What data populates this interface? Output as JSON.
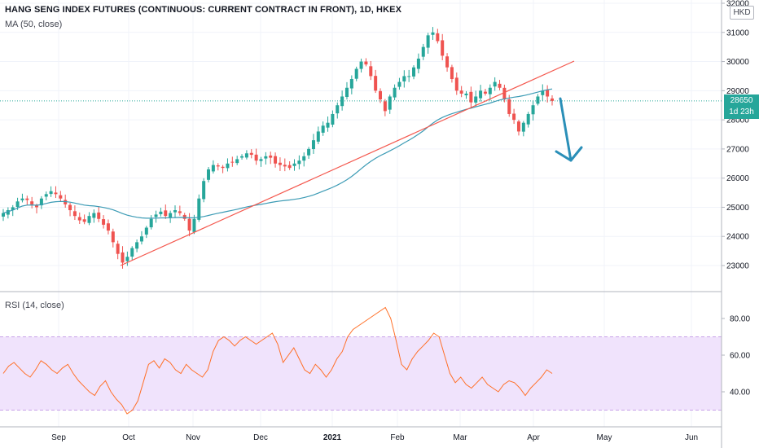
{
  "header": {
    "title": "HANG SENG INDEX FUTURES (CONTINUOUS: CURRENT CONTRACT IN FRONT), 1D, HKEX",
    "ma_label": "MA (50, close)",
    "rsi_label": "RSI (14, close)"
  },
  "price_axis": {
    "unit": "HKD",
    "ticks": [
      "32000",
      "31000",
      "30000",
      "29000",
      "28000",
      "27000",
      "26000",
      "25000",
      "24000",
      "23000"
    ],
    "last_price": "28650",
    "countdown": "1d 23h"
  },
  "rsi_axis": {
    "ticks": [
      "80.00",
      "60.00",
      "40.00"
    ]
  },
  "time_axis": {
    "ticks": [
      "Sep",
      "Oct",
      "Nov",
      "Dec",
      "2021",
      "Feb",
      "Mar",
      "Apr",
      "May",
      "Jun"
    ]
  },
  "colors": {
    "up": "#26a69a",
    "down": "#ef5350",
    "ma": "#3c9bb5",
    "trendline": "#f4584e",
    "rsi": "#ff7028",
    "rsi_band": "#f0e3fc",
    "arrow": "#2a8fb8",
    "last_price_line": "#26a69a"
  },
  "chart_data": [
    {
      "type": "candlestick",
      "title": "HANG SENG INDEX FUTURES (CONTINUOUS: CURRENT CONTRACT IN FRONT), 1D, HKEX",
      "ylim": [
        22600,
        32000
      ],
      "x_ticks": [
        "Sep",
        "Oct",
        "Nov",
        "Dec",
        "2021",
        "Feb",
        "Mar",
        "Apr",
        "May",
        "Jun"
      ],
      "approx_close_series": [
        24800,
        24900,
        25000,
        25200,
        25300,
        25250,
        25100,
        25000,
        25300,
        25450,
        25550,
        25450,
        25300,
        25100,
        24900,
        24700,
        24550,
        24500,
        24700,
        24800,
        24600,
        24400,
        24200,
        23800,
        23400,
        23100,
        23300,
        23600,
        23800,
        24000,
        24300,
        24600,
        24750,
        24850,
        24700,
        24800,
        24900,
        24800,
        24600,
        24200,
        24600,
        25300,
        25900,
        26300,
        26450,
        26400,
        26350,
        26500,
        26550,
        26650,
        26750,
        26850,
        26800,
        26600,
        26650,
        26750,
        26700,
        26500,
        26450,
        26400,
        26350,
        26500,
        26600,
        26750,
        27000,
        27300,
        27600,
        27800,
        27900,
        28200,
        28500,
        28800,
        29100,
        29400,
        29750,
        30000,
        29900,
        29500,
        29000,
        28700,
        28300,
        28800,
        29100,
        29300,
        29500,
        29500,
        29800,
        30100,
        30500,
        30900,
        31000,
        30700,
        30200,
        29800,
        29400,
        29000,
        28900,
        28900,
        28600,
        28800,
        29000,
        28900,
        29100,
        29300,
        29100,
        28700,
        28200,
        28000,
        27600,
        27900,
        28200,
        28500,
        28800,
        29000,
        28800,
        28650
      ],
      "last_close": 28650,
      "series": [
        {
          "name": "MA (50, close)"
        }
      ],
      "annotations": [
        "rising support trendline",
        "downward arrow after trendline break"
      ]
    },
    {
      "type": "line",
      "title": "RSI (14, close)",
      "ylim": [
        24,
        90
      ],
      "y_ticks": [
        80,
        60,
        40
      ],
      "band": [
        30,
        70
      ],
      "series": [
        {
          "name": "RSI (14, close)",
          "values": [
            50,
            54,
            56,
            53,
            50,
            48,
            52,
            57,
            55,
            52,
            50,
            53,
            55,
            50,
            46,
            43,
            40,
            38,
            43,
            46,
            40,
            36,
            33,
            28,
            30,
            35,
            45,
            55,
            57,
            53,
            58,
            56,
            52,
            50,
            55,
            52,
            50,
            48,
            52,
            62,
            68,
            70,
            68,
            65,
            68,
            70,
            68,
            66,
            68,
            70,
            72,
            66,
            56,
            60,
            64,
            58,
            52,
            50,
            55,
            52,
            48,
            52,
            58,
            62,
            70,
            74,
            76,
            78,
            80,
            82,
            84,
            86,
            80,
            68,
            55,
            52,
            58,
            62,
            65,
            68,
            72,
            70,
            60,
            50,
            45,
            48,
            44,
            42,
            45,
            48,
            44,
            42,
            40,
            44,
            46,
            45,
            42,
            38,
            42,
            45,
            48,
            52,
            50
          ]
        }
      ]
    }
  ]
}
